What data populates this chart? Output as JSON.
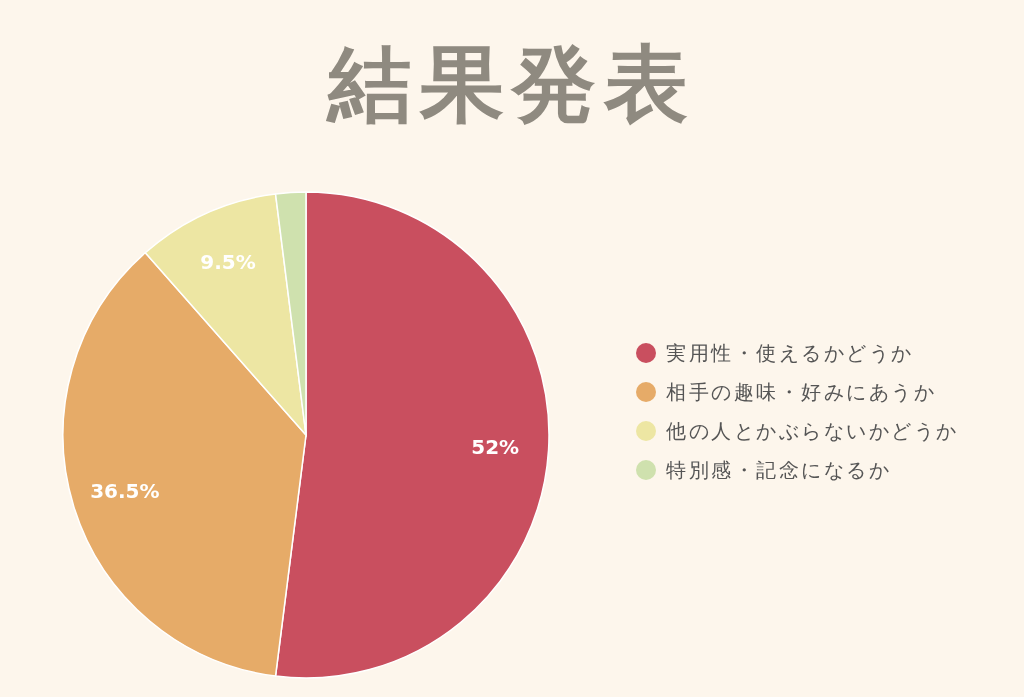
{
  "chart_data": {
    "type": "pie",
    "title": "結果発表",
    "categories": [
      "実用性・使えるかどうか",
      "相手の趣味・好みにあうか",
      "他の人とかぶらないかどうか",
      "特別感・記念になるか"
    ],
    "values": [
      52,
      36.5,
      9.5,
      2
    ],
    "colors": [
      "#c94f5f",
      "#e6ab68",
      "#ede6a3",
      "#cfe1ae"
    ],
    "value_labels": [
      "52%",
      "36.5%",
      "9.5%",
      null
    ],
    "legend": "right"
  }
}
